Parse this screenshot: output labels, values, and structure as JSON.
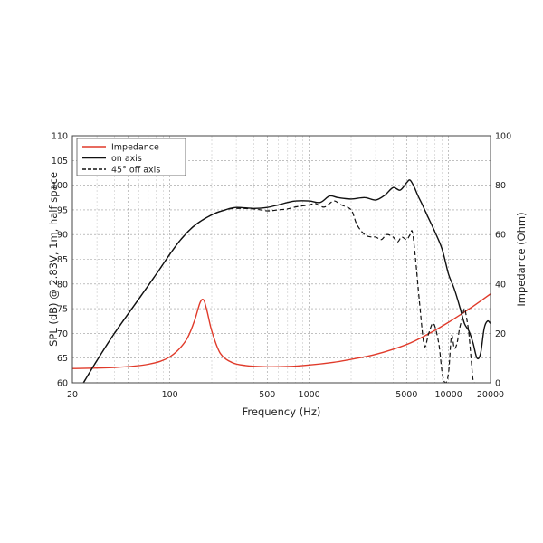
{
  "chart_data": {
    "type": "line",
    "xlabel": "Frequency (Hz)",
    "ylabel_left": "SPL (dB) @ 2.83V, 1m, half space",
    "ylabel_right": "Impedance (Ohm)",
    "x_scale": "log",
    "xlim": [
      20,
      20000
    ],
    "ylim_left": [
      60,
      110
    ],
    "ylim_right": [
      0,
      100
    ],
    "x_tick_labels": [
      "20",
      "100",
      "500",
      "1000",
      "5000",
      "10000",
      "20000"
    ],
    "y_left_tick_labels": [
      "60",
      "65",
      "70",
      "75",
      "80",
      "85",
      "90",
      "95",
      "100",
      "105",
      "110"
    ],
    "y_right_tick_labels": [
      "0",
      "20",
      "40",
      "60",
      "80",
      "100"
    ],
    "grid": true,
    "legend_position": "top-left",
    "series": [
      {
        "name": "Impedance",
        "axis": "right",
        "color": "#e03a2a",
        "dash": "solid",
        "x": [
          20,
          40,
          70,
          100,
          130,
          150,
          165,
          175,
          185,
          200,
          230,
          280,
          350,
          500,
          700,
          1000,
          1500,
          2000,
          3000,
          5000,
          7000,
          10000,
          15000,
          20000
        ],
        "y": [
          5.8,
          6.2,
          7.5,
          10.5,
          17,
          25,
          32.5,
          33.5,
          29,
          21,
          12,
          8.2,
          7,
          6.5,
          6.6,
          7.2,
          8.3,
          9.5,
          11.5,
          15.5,
          19.5,
          24.5,
          31,
          36
        ]
      },
      {
        "name": "on axis",
        "axis": "left",
        "color": "#111111",
        "dash": "solid",
        "x": [
          24,
          30,
          40,
          60,
          80,
          100,
          120,
          150,
          200,
          250,
          300,
          400,
          500,
          600,
          700,
          800,
          1000,
          1200,
          1400,
          1600,
          2000,
          2500,
          3000,
          3500,
          4000,
          4500,
          5000,
          5300,
          5700,
          6000,
          6500,
          7000,
          8000,
          9000,
          10000,
          11000,
          12000,
          13000,
          14000,
          15000,
          16000,
          17000,
          18000,
          19000,
          20000
        ],
        "y": [
          60,
          64.5,
          70,
          77,
          82,
          86,
          89,
          91.8,
          94,
          95,
          95.5,
          95.3,
          95.5,
          96,
          96.5,
          96.8,
          96.8,
          96.5,
          97.8,
          97.5,
          97.2,
          97.5,
          97,
          98,
          99.5,
          99,
          100.5,
          101,
          99.5,
          98,
          96,
          94,
          90.5,
          87,
          82,
          79,
          75.5,
          72,
          70.5,
          68,
          65,
          66,
          71,
          72.5,
          72
        ]
      },
      {
        "name": "45° off axis",
        "axis": "left",
        "color": "#111111",
        "dash": "dashed",
        "x": [
          24,
          30,
          40,
          60,
          80,
          100,
          120,
          150,
          200,
          250,
          300,
          400,
          500,
          600,
          700,
          800,
          1000,
          1100,
          1200,
          1300,
          1500,
          1700,
          2000,
          2200,
          2500,
          2800,
          3000,
          3300,
          3600,
          4000,
          4300,
          4600,
          5000,
          5300,
          5500,
          5800,
          6200,
          6700,
          7200,
          7800,
          8500,
          9000,
          9500,
          10000,
          10500,
          11000,
          11500,
          12000,
          12500,
          13000,
          13500,
          14000,
          14500,
          15000,
          15500
        ],
        "y": [
          60,
          64.5,
          70,
          77,
          82,
          86,
          89,
          91.8,
          94,
          95,
          95.3,
          95.2,
          94.8,
          95,
          95.2,
          95.6,
          96,
          96.3,
          95.8,
          95.6,
          96.8,
          96,
          95,
          92,
          90,
          89.5,
          89.5,
          89,
          90,
          89.5,
          88.5,
          89.5,
          89,
          90,
          90.5,
          85,
          76,
          67.5,
          70,
          72,
          68,
          62,
          60,
          62,
          69.5,
          67,
          68,
          71,
          73,
          75,
          73,
          70,
          65,
          60.5,
          60
        ]
      }
    ]
  }
}
